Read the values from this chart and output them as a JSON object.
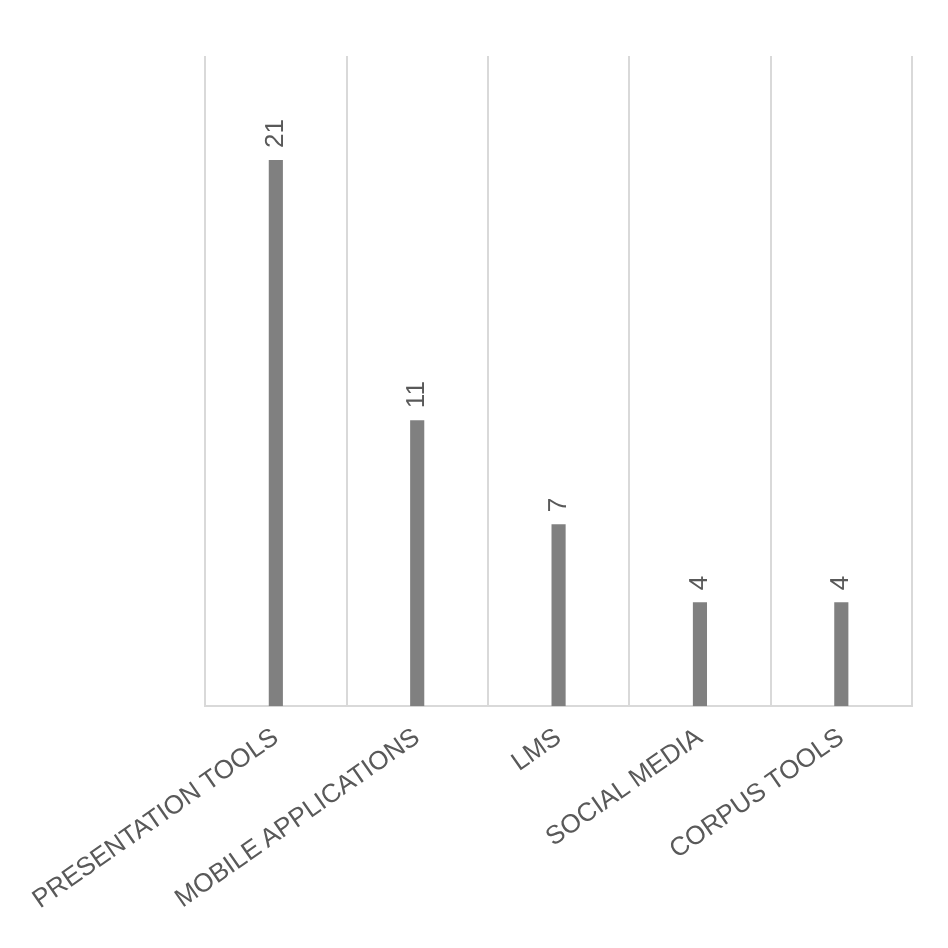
{
  "chart_data": {
    "type": "bar",
    "categories": [
      "PRESENTATION TOOLS",
      "MOBILE APPLICATIONS",
      "LMS",
      "SOCIAL MEDIA",
      "CORPUS TOOLS"
    ],
    "values": [
      21,
      11,
      7,
      4,
      4
    ],
    "color": "#808080",
    "data_labels": true,
    "grid": "x"
  }
}
